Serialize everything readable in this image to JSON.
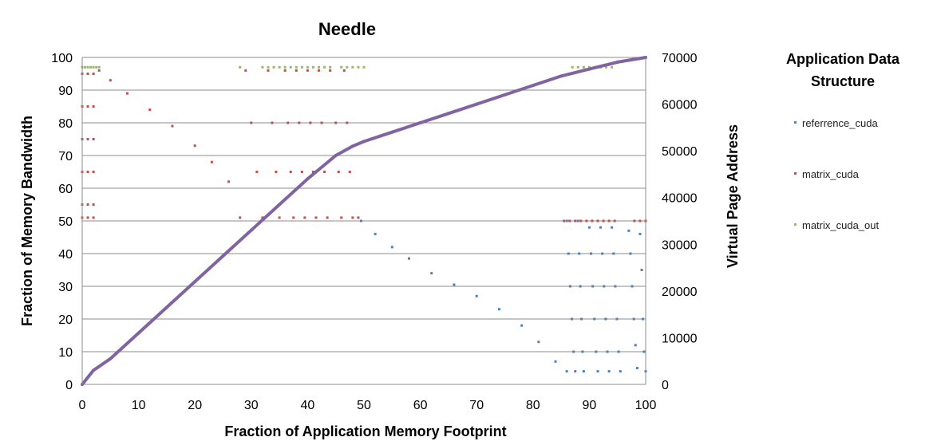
{
  "chart_data": {
    "type": "scatter",
    "title": "Needle",
    "xlabel": "Fraction of Application Memory Footprint",
    "ylabel": "Fraction of Memory Bandwidth",
    "y2label": "Virtual Page Address",
    "xlim": [
      0,
      100
    ],
    "ylim": [
      0,
      100
    ],
    "y2lim": [
      0,
      70000
    ],
    "xticks": [
      "0",
      "10",
      "20",
      "30",
      "40",
      "50",
      "60",
      "70",
      "80",
      "90",
      "100"
    ],
    "yticks": [
      "0",
      "10",
      "20",
      "30",
      "40",
      "50",
      "60",
      "70",
      "80",
      "90",
      "100"
    ],
    "y2ticks": [
      "0",
      "10000",
      "20000",
      "30000",
      "40000",
      "50000",
      "60000",
      "70000"
    ],
    "grid": "horizontal",
    "legend_position": "right",
    "legend_title": "Application Data Structure",
    "colors": {
      "referrence_cuda": "#4f81bd",
      "matrix_cuda": "#c0504d",
      "matrix_cuda_out": "#9bbb59",
      "address": "#8064a2"
    },
    "series": [
      {
        "name": "referrence_cuda",
        "axis": "left",
        "points": [
          [
            49.5,
            50
          ],
          [
            52,
            46
          ],
          [
            55,
            42
          ],
          [
            58,
            38.5
          ],
          [
            62,
            34
          ],
          [
            66,
            30.5
          ],
          [
            70,
            27
          ],
          [
            74,
            23
          ],
          [
            78,
            18
          ],
          [
            81,
            13
          ],
          [
            84,
            7
          ],
          [
            86,
            4
          ],
          [
            86,
            50
          ],
          [
            86.3,
            40
          ],
          [
            86.6,
            30
          ],
          [
            86.9,
            20
          ],
          [
            87.2,
            10
          ],
          [
            87.5,
            4
          ],
          [
            88,
            50
          ],
          [
            88.2,
            40
          ],
          [
            88.4,
            30
          ],
          [
            88.6,
            20
          ],
          [
            88.8,
            10
          ],
          [
            89,
            4
          ],
          [
            90,
            48
          ],
          [
            90.3,
            40
          ],
          [
            90.6,
            30
          ],
          [
            90.9,
            20
          ],
          [
            91.2,
            10
          ],
          [
            91.5,
            4
          ],
          [
            92,
            48
          ],
          [
            92.3,
            40
          ],
          [
            92.6,
            30
          ],
          [
            92.9,
            20
          ],
          [
            93.2,
            10
          ],
          [
            93.5,
            4
          ],
          [
            94,
            48
          ],
          [
            94.3,
            40
          ],
          [
            94.6,
            30
          ],
          [
            94.9,
            20
          ],
          [
            95.2,
            10
          ],
          [
            95.5,
            4
          ],
          [
            97,
            47
          ],
          [
            97.3,
            40
          ],
          [
            97.6,
            30
          ],
          [
            97.9,
            20
          ],
          [
            98.2,
            12
          ],
          [
            98.5,
            5
          ],
          [
            99,
            46
          ],
          [
            99.3,
            35
          ],
          [
            99.5,
            20
          ],
          [
            99.7,
            10
          ],
          [
            100,
            4
          ]
        ]
      },
      {
        "name": "matrix_cuda",
        "axis": "left",
        "points": [
          [
            0,
            95
          ],
          [
            0,
            85
          ],
          [
            0,
            75
          ],
          [
            0,
            65
          ],
          [
            0,
            55
          ],
          [
            0,
            51
          ],
          [
            1,
            95
          ],
          [
            1,
            85
          ],
          [
            1,
            75
          ],
          [
            1,
            65
          ],
          [
            1,
            55
          ],
          [
            1,
            51
          ],
          [
            2,
            95
          ],
          [
            2,
            85
          ],
          [
            2,
            75
          ],
          [
            2,
            65
          ],
          [
            2,
            55
          ],
          [
            2,
            51
          ],
          [
            3,
            96
          ],
          [
            5,
            93
          ],
          [
            8,
            89
          ],
          [
            12,
            84
          ],
          [
            16,
            79
          ],
          [
            20,
            73
          ],
          [
            23,
            68
          ],
          [
            26,
            62
          ],
          [
            28,
            51
          ],
          [
            29,
            96
          ],
          [
            30,
            80
          ],
          [
            31,
            65
          ],
          [
            32,
            51
          ],
          [
            33,
            96
          ],
          [
            33.7,
            80
          ],
          [
            34.4,
            65
          ],
          [
            35,
            51
          ],
          [
            36,
            96
          ],
          [
            36.5,
            80
          ],
          [
            37,
            65
          ],
          [
            37.5,
            51
          ],
          [
            38,
            96
          ],
          [
            38.5,
            80
          ],
          [
            39,
            65
          ],
          [
            39.5,
            51
          ],
          [
            40,
            96
          ],
          [
            40.5,
            80
          ],
          [
            41,
            65
          ],
          [
            41.5,
            51
          ],
          [
            42,
            96
          ],
          [
            42.5,
            80
          ],
          [
            43,
            65
          ],
          [
            43.5,
            51
          ],
          [
            44,
            96
          ],
          [
            45,
            80
          ],
          [
            45.5,
            65
          ],
          [
            46,
            51
          ],
          [
            46.5,
            96
          ],
          [
            47,
            80
          ],
          [
            47.5,
            65
          ],
          [
            48,
            51
          ],
          [
            49,
            51
          ],
          [
            85.5,
            50
          ],
          [
            86.5,
            50
          ],
          [
            87.5,
            50
          ],
          [
            88.5,
            50
          ],
          [
            89.5,
            50
          ],
          [
            90.5,
            50
          ],
          [
            91.5,
            50
          ],
          [
            92.5,
            50
          ],
          [
            93.5,
            50
          ],
          [
            94.5,
            50
          ],
          [
            98,
            50
          ],
          [
            99,
            50
          ],
          [
            100,
            50
          ]
        ]
      },
      {
        "name": "matrix_cuda_out",
        "axis": "left",
        "points": [
          [
            0,
            97
          ],
          [
            0.5,
            97
          ],
          [
            1,
            97
          ],
          [
            1.5,
            97
          ],
          [
            2,
            97
          ],
          [
            2.5,
            97
          ],
          [
            3,
            97
          ],
          [
            28,
            97
          ],
          [
            32,
            97
          ],
          [
            33,
            97
          ],
          [
            34,
            97
          ],
          [
            35,
            97
          ],
          [
            36,
            97
          ],
          [
            37,
            97
          ],
          [
            38,
            97
          ],
          [
            39,
            97
          ],
          [
            40,
            97
          ],
          [
            41,
            97
          ],
          [
            42,
            97
          ],
          [
            43,
            97
          ],
          [
            44,
            97
          ],
          [
            46,
            97
          ],
          [
            47,
            97
          ],
          [
            48,
            97
          ],
          [
            49,
            97
          ],
          [
            50,
            97
          ],
          [
            87,
            97
          ],
          [
            88,
            97
          ],
          [
            89,
            97
          ],
          [
            90,
            97
          ],
          [
            91,
            97
          ],
          [
            92,
            97
          ],
          [
            93,
            97
          ],
          [
            94,
            97
          ]
        ]
      },
      {
        "name": "Virtual Page Address",
        "axis": "right",
        "points": [
          [
            0,
            0
          ],
          [
            2,
            3000
          ],
          [
            5,
            5500
          ],
          [
            10,
            11000
          ],
          [
            15,
            16500
          ],
          [
            20,
            22000
          ],
          [
            25,
            27500
          ],
          [
            30,
            33000
          ],
          [
            35,
            38500
          ],
          [
            40,
            44000
          ],
          [
            45,
            49000
          ],
          [
            48,
            51000
          ],
          [
            50,
            52000
          ],
          [
            55,
            54000
          ],
          [
            60,
            56000
          ],
          [
            65,
            58000
          ],
          [
            70,
            60000
          ],
          [
            75,
            62000
          ],
          [
            80,
            64000
          ],
          [
            85,
            66000
          ],
          [
            90,
            67500
          ],
          [
            95,
            69000
          ],
          [
            100,
            70000
          ]
        ]
      }
    ]
  }
}
